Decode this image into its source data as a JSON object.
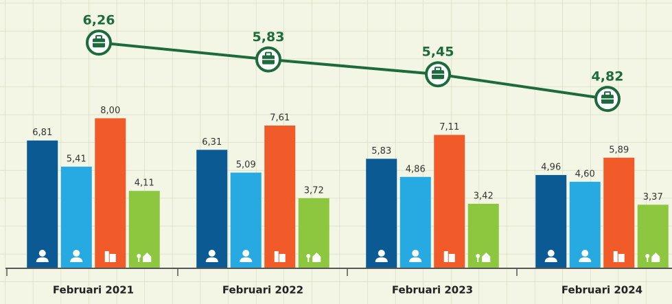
{
  "chart_data": {
    "type": "bar",
    "categories": [
      "Februari 2021",
      "Februari 2022",
      "Februari 2023",
      "Februari 2024"
    ],
    "ylim": [
      0,
      13.6
    ],
    "y2lim": [
      0.5,
      7
    ],
    "series": [
      {
        "color": "#0b5a94",
        "values": [
          6.81,
          6.31,
          5.83,
          4.96
        ],
        "value_labels": [
          "6,81",
          "6,31",
          "5,83",
          "4,96"
        ]
      },
      {
        "color": "#27a9e1",
        "values": [
          5.41,
          5.09,
          4.86,
          4.6
        ],
        "value_labels": [
          "5,41",
          "5,09",
          "4,86",
          "4,60"
        ]
      },
      {
        "color": "#f15a29",
        "values": [
          8.0,
          7.61,
          7.11,
          5.89
        ],
        "value_labels": [
          "8,00",
          "7,61",
          "7,11",
          "5,89"
        ]
      },
      {
        "color": "#8dc63f",
        "values": [
          4.11,
          3.72,
          3.42,
          3.37
        ],
        "value_labels": [
          "4,11",
          "3,72",
          "3,42",
          "3,37"
        ]
      },
      {
        "type": "line",
        "axis": "y2",
        "color": "#1d6b3c",
        "values": [
          6.26,
          5.83,
          5.45,
          4.82
        ],
        "value_labels": [
          "6,26",
          "5,83",
          "5,45",
          "4,82"
        ]
      }
    ]
  }
}
